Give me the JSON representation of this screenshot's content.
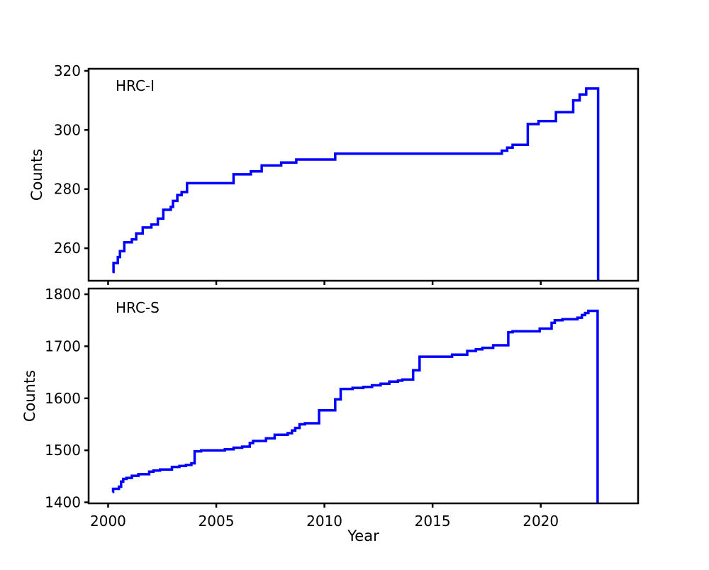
{
  "figure": {
    "xlabel": "Year",
    "ylabel": "Counts",
    "line_color": "#0000ff",
    "axis_color": "#000000",
    "background_color": "#ffffff"
  },
  "chart_data": [
    {
      "type": "line",
      "style": "step-after",
      "label": "HRC-I",
      "xlabel": "Year",
      "ylabel": "Counts",
      "xlim": [
        1999.1,
        2024.5
      ],
      "ylim": [
        249,
        320.7
      ],
      "xticks": [
        2000,
        2005,
        2010,
        2015,
        2020
      ],
      "yticks": [
        260,
        280,
        300,
        320
      ],
      "show_x_tick_labels": false,
      "grid": false,
      "legend": "none",
      "end_drops_to_bottom": true,
      "points": [
        [
          2000.2,
          252
        ],
        [
          2000.25,
          255
        ],
        [
          2000.45,
          257
        ],
        [
          2000.55,
          259
        ],
        [
          2000.75,
          262
        ],
        [
          2001.1,
          263
        ],
        [
          2001.3,
          265
        ],
        [
          2001.6,
          267
        ],
        [
          2002.0,
          268
        ],
        [
          2002.3,
          270
        ],
        [
          2002.55,
          273
        ],
        [
          2002.9,
          274
        ],
        [
          2003.0,
          276
        ],
        [
          2003.2,
          278
        ],
        [
          2003.4,
          279
        ],
        [
          2003.65,
          282
        ],
        [
          2005.8,
          285
        ],
        [
          2006.6,
          286
        ],
        [
          2007.1,
          288
        ],
        [
          2008.0,
          289
        ],
        [
          2008.7,
          290
        ],
        [
          2010.5,
          292
        ],
        [
          2018.2,
          293
        ],
        [
          2018.45,
          294
        ],
        [
          2018.7,
          295
        ],
        [
          2019.4,
          302
        ],
        [
          2019.9,
          303
        ],
        [
          2020.7,
          306
        ],
        [
          2021.5,
          310
        ],
        [
          2021.8,
          312
        ],
        [
          2022.1,
          314
        ],
        [
          2022.65,
          314
        ]
      ]
    },
    {
      "type": "line",
      "style": "step-after",
      "label": "HRC-S",
      "xlabel": "Year",
      "ylabel": "Counts",
      "xlim": [
        1999.1,
        2024.5
      ],
      "ylim": [
        1398,
        1811
      ],
      "xticks": [
        2000,
        2005,
        2010,
        2015,
        2020
      ],
      "yticks": [
        1400,
        1500,
        1600,
        1700,
        1800
      ],
      "show_x_tick_labels": true,
      "grid": false,
      "legend": "none",
      "end_drops_to_bottom": true,
      "points": [
        [
          2000.2,
          1420
        ],
        [
          2000.23,
          1426
        ],
        [
          2000.5,
          1430
        ],
        [
          2000.6,
          1440
        ],
        [
          2000.7,
          1445
        ],
        [
          2000.85,
          1447
        ],
        [
          2001.1,
          1451
        ],
        [
          2001.4,
          1454
        ],
        [
          2001.9,
          1459
        ],
        [
          2002.1,
          1461
        ],
        [
          2002.4,
          1463
        ],
        [
          2002.95,
          1468
        ],
        [
          2003.3,
          1470
        ],
        [
          2003.6,
          1472
        ],
        [
          2003.85,
          1475
        ],
        [
          2004.0,
          1498
        ],
        [
          2004.3,
          1500
        ],
        [
          2005.4,
          1502
        ],
        [
          2005.8,
          1505
        ],
        [
          2006.2,
          1507
        ],
        [
          2006.55,
          1514
        ],
        [
          2006.7,
          1518
        ],
        [
          2007.3,
          1523
        ],
        [
          2007.7,
          1530
        ],
        [
          2008.3,
          1533
        ],
        [
          2008.5,
          1538
        ],
        [
          2008.65,
          1543
        ],
        [
          2008.85,
          1550
        ],
        [
          2009.1,
          1552
        ],
        [
          2009.75,
          1577
        ],
        [
          2010.5,
          1598
        ],
        [
          2010.75,
          1618
        ],
        [
          2011.3,
          1620
        ],
        [
          2011.8,
          1622
        ],
        [
          2012.2,
          1625
        ],
        [
          2012.6,
          1628
        ],
        [
          2013.0,
          1632
        ],
        [
          2013.4,
          1634
        ],
        [
          2013.6,
          1636
        ],
        [
          2014.1,
          1654
        ],
        [
          2014.4,
          1680
        ],
        [
          2015.9,
          1684
        ],
        [
          2016.6,
          1691
        ],
        [
          2017.0,
          1694
        ],
        [
          2017.3,
          1697
        ],
        [
          2017.8,
          1702
        ],
        [
          2018.5,
          1727
        ],
        [
          2018.7,
          1729
        ],
        [
          2019.95,
          1734
        ],
        [
          2020.5,
          1745
        ],
        [
          2020.65,
          1750
        ],
        [
          2021.0,
          1752
        ],
        [
          2021.7,
          1755
        ],
        [
          2021.9,
          1760
        ],
        [
          2022.05,
          1764
        ],
        [
          2022.2,
          1768
        ],
        [
          2022.63,
          1768
        ]
      ]
    }
  ]
}
